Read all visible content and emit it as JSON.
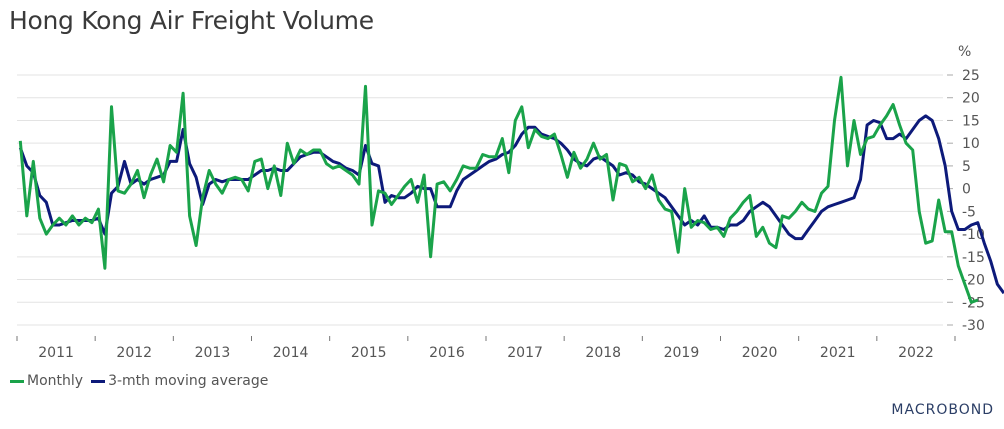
{
  "chart_data": {
    "type": "line",
    "title": "Hong Kong Air Freight Volume",
    "ylabel": "%",
    "xlabel": "",
    "ylim": [
      -30,
      25
    ],
    "yticks": [
      25,
      20,
      15,
      10,
      5,
      0,
      -5,
      -10,
      -15,
      -20,
      -25,
      -30
    ],
    "xticks": [
      "2011",
      "2012",
      "2013",
      "2014",
      "2015",
      "2016",
      "2017",
      "2018",
      "2019",
      "2020",
      "2021",
      "2022"
    ],
    "x_start": "2011-01",
    "x_end_year": 2023,
    "grid": true,
    "legend_position": "bottom-left",
    "series": [
      {
        "name": "Monthly",
        "color": "#1aa34a",
        "values": [
          10.5,
          -6,
          6,
          -6.5,
          -10,
          -8,
          -6.5,
          -8,
          -6,
          -8,
          -6.5,
          -7.5,
          -4.5,
          -17.5,
          18,
          -0.5,
          -1,
          1,
          4,
          -2,
          3,
          6.5,
          1.5,
          9.5,
          8,
          21,
          -6,
          -12.5,
          -2,
          4,
          1,
          -1,
          2,
          2.5,
          2,
          -0.5,
          6,
          6.5,
          0,
          5,
          -1.5,
          10,
          5.5,
          8.5,
          7.5,
          8.5,
          8.5,
          5.5,
          4.5,
          5,
          4,
          3,
          1,
          22.5,
          -8,
          -0.5,
          -1,
          -3.5,
          -1.5,
          0.5,
          2,
          -3,
          3,
          -15,
          1,
          1.5,
          -0.5,
          2,
          5,
          4.5,
          4.5,
          7.5,
          7,
          7,
          11,
          3.5,
          15,
          18,
          9,
          13,
          11.5,
          11,
          12,
          7.5,
          2.5,
          8,
          4.5,
          6.5,
          10,
          6.5,
          7.5,
          -2.5,
          5.5,
          5,
          1.5,
          2.5,
          0,
          3,
          -2.5,
          -4.5,
          -5,
          -14,
          0,
          -8.5,
          -7,
          -7.5,
          -9,
          -8.5,
          -10.5,
          -6.5,
          -5,
          -3,
          -1.5,
          -10.5,
          -8.5,
          -12,
          -13,
          -6,
          -6.5,
          -5,
          -3,
          -4.5,
          -5,
          -1,
          0.5,
          15,
          24.5,
          5,
          15,
          7.5,
          11,
          11.5,
          14,
          16,
          18.5,
          14,
          10,
          8.5,
          -5,
          -12,
          -11.5,
          -2.5,
          -9.5,
          -9.5,
          -17,
          -21,
          -25,
          -24.5
        ]
      },
      {
        "name": "3-mth moving average",
        "color": "#0d1a7a",
        "values": [
          9,
          5,
          3.5,
          -1.5,
          -3,
          -8,
          -8,
          -7.5,
          -7,
          -7,
          -7,
          -7,
          -6.5,
          -10,
          -1,
          0.5,
          6,
          1,
          2,
          1,
          2,
          2.5,
          3,
          6,
          6,
          13,
          5.5,
          2.5,
          -3.5,
          1,
          2,
          1.5,
          2,
          2,
          2,
          2,
          3,
          4,
          4,
          4.5,
          4,
          4,
          5.5,
          7,
          7.5,
          8,
          8,
          7,
          6,
          5.5,
          4.5,
          4,
          3,
          9.5,
          5.5,
          5,
          -3,
          -1.5,
          -2,
          -2,
          -1,
          0.5,
          0,
          0,
          -4,
          -4,
          -4,
          -0.5,
          2,
          3,
          4,
          5,
          6,
          6.5,
          7.5,
          8,
          9.5,
          12,
          13.5,
          13.5,
          12,
          11.5,
          11,
          10,
          8.5,
          6.5,
          5.5,
          5,
          6.5,
          7,
          6,
          5,
          3,
          3.5,
          3,
          1.5,
          1,
          0,
          -1,
          -2,
          -4,
          -6,
          -8,
          -7,
          -8,
          -6,
          -8.5,
          -8.5,
          -9,
          -8,
          -8,
          -7,
          -5,
          -4,
          -3,
          -4,
          -6,
          -8,
          -10,
          -11,
          -11,
          -9,
          -7,
          -5,
          -4,
          -3.5,
          -3,
          -2.5,
          -2,
          2,
          14,
          15,
          14.5,
          11,
          11,
          12,
          11,
          13,
          15,
          16,
          15,
          11,
          5,
          -5,
          -9,
          -9,
          -8,
          -7.5,
          -12,
          -16,
          -21,
          -23
        ]
      }
    ]
  },
  "header": {
    "title": "Hong Kong Air Freight Volume"
  },
  "legend": {
    "items": [
      {
        "label": "Monthly",
        "color": "#1aa34a"
      },
      {
        "label": "3-mth moving average",
        "color": "#0d1a7a"
      }
    ]
  },
  "branding": {
    "logo": "MACROBOND"
  }
}
